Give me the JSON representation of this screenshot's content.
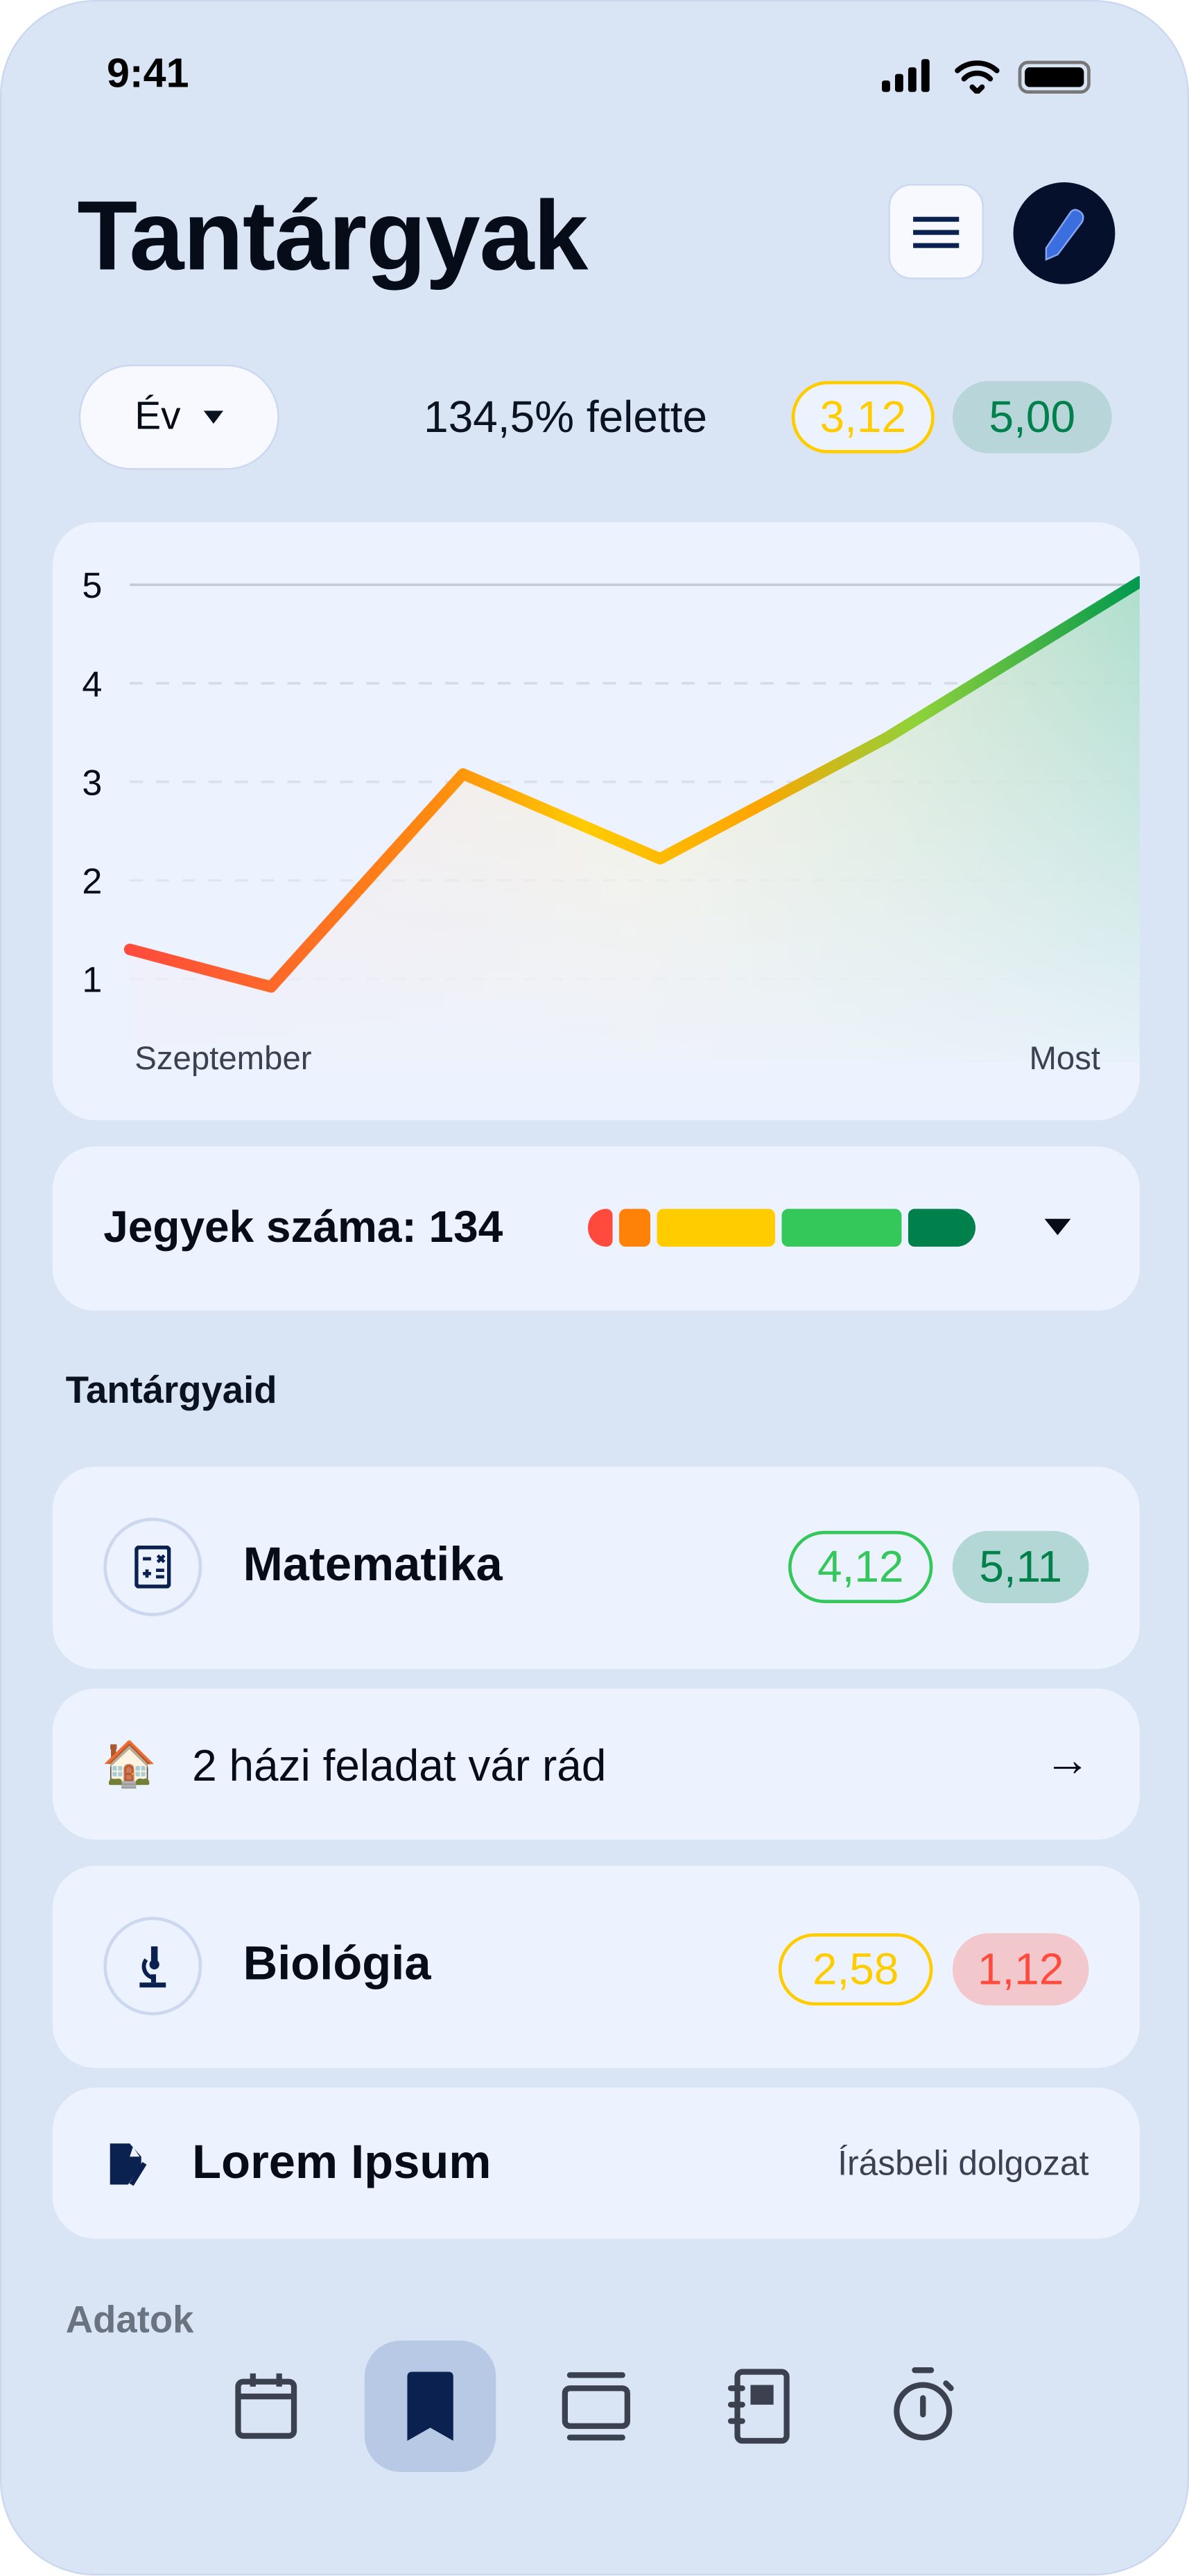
{
  "status_bar": {
    "time": "9:41",
    "icons": [
      "signal-icon",
      "wifi-icon",
      "battery-icon"
    ]
  },
  "header": {
    "title": "Tantárgyak",
    "menu_icon": "hamburger-menu-icon",
    "edit_icon": "pencil-icon"
  },
  "filter": {
    "period_selected": "Év",
    "above_text": "134,5% felette",
    "average": "3,12",
    "target": "5,00"
  },
  "colors": {
    "grade1": "#ff4a3d",
    "grade2": "#ff8208",
    "grade3": "#ffcc00",
    "grade4": "#34c759",
    "grade5": "#00804a",
    "accent": "#0b2150"
  },
  "chart_data": {
    "type": "line",
    "x_labels": [
      "Szeptember",
      "Most"
    ],
    "values": [
      1.3,
      0.92,
      3.08,
      2.22,
      3.45,
      5.03
    ],
    "ylim": [
      1,
      5
    ],
    "y_ticks": [
      "1",
      "2",
      "3",
      "4",
      "5"
    ],
    "grid": true,
    "fill": "gradient area",
    "title": "",
    "xlabel": "",
    "ylabel": ""
  },
  "grades_summary": {
    "label": "Jegyek száma: 134",
    "distribution_segments": [
      "1",
      "2",
      "3",
      "4",
      "5"
    ]
  },
  "subjects_section": {
    "title": "Tantárgyaid"
  },
  "subjects": [
    {
      "name": "Matematika",
      "icon": "calculator-icon",
      "average": "4,12",
      "second": "5,11"
    },
    {
      "name": "Biológia",
      "icon": "microscope-icon",
      "average": "2,58",
      "second": "1,12"
    }
  ],
  "homework": {
    "emoji": "🏠",
    "text": "2 házi feladat vár rád",
    "arrow": "→"
  },
  "exam": {
    "title": "Lorem Ipsum",
    "type": "Írásbeli dolgozat",
    "icon": "exam-document-icon"
  },
  "data_section": {
    "title": "Adatok"
  },
  "bottom_nav": {
    "items": [
      "calendar-icon",
      "bookmark-icon",
      "cards-icon",
      "notebook-icon",
      "stopwatch-icon"
    ],
    "active": 1
  }
}
